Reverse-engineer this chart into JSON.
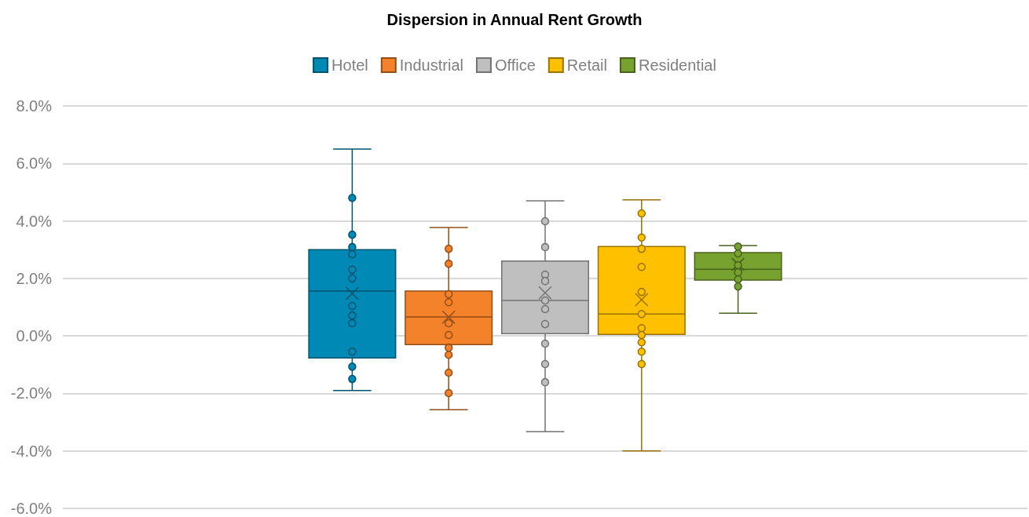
{
  "chart_data": {
    "type": "box",
    "title": "Dispersion in Annual Rent Growth",
    "categories": [
      null
    ],
    "ylim": [
      -6,
      8
    ],
    "yticks": [
      {
        "value": -6,
        "label": "-6.0%"
      },
      {
        "value": -4,
        "label": "-4.0%"
      },
      {
        "value": -2,
        "label": "-2.0%"
      },
      {
        "value": 0,
        "label": "0.0%"
      },
      {
        "value": 2,
        "label": "2.0%"
      },
      {
        "value": 4,
        "label": "4.0%"
      },
      {
        "value": 6,
        "label": "6.0%"
      },
      {
        "value": 8,
        "label": "8.0%"
      }
    ],
    "grid": "y",
    "legend": "top",
    "marker": "circle",
    "series": [
      {
        "name": "Hotel",
        "color": "#0089b5",
        "boxes": [
          {
            "low": -1.9,
            "q1": -0.77,
            "median": 1.56,
            "q3": 3.0,
            "high": 6.5,
            "mean": 1.48
          }
        ]
      },
      {
        "name": "Industrial",
        "color": "#f4822a",
        "boxes": [
          {
            "low": -2.57,
            "q1": -0.3,
            "median": 0.66,
            "q3": 1.56,
            "high": 3.77,
            "mean": 0.65
          }
        ]
      },
      {
        "name": "Office",
        "color": "#bfbfbf",
        "boxes": [
          {
            "low": -3.33,
            "q1": 0.08,
            "median": 1.23,
            "q3": 2.6,
            "high": 4.7,
            "mean": 1.5
          }
        ]
      },
      {
        "name": "Retail",
        "color": "#ffc000",
        "boxes": [
          {
            "low": -4.0,
            "q1": 0.05,
            "median": 0.76,
            "q3": 3.11,
            "high": 4.73,
            "mean": 1.26
          }
        ]
      },
      {
        "name": "Residential",
        "color": "#78a22f",
        "boxes": [
          {
            "low": 0.79,
            "q1": 1.94,
            "median": 2.32,
            "q3": 2.9,
            "high": 3.14,
            "mean": 2.49
          }
        ]
      },
      {
        "type": "scatter",
        "color": "#0089b5",
        "x": [
          null,
          null,
          null,
          null,
          null,
          null,
          null,
          null,
          null,
          null,
          null,
          null
        ],
        "values": [
          4.8,
          3.52,
          3.09,
          2.84,
          2.3,
          2.0,
          1.04,
          0.71,
          0.44,
          -0.55,
          -1.07,
          -1.5
        ]
      },
      {
        "type": "scatter",
        "color": "#f4822a",
        "x": [
          null,
          null,
          null,
          null,
          null,
          null,
          null,
          null,
          null,
          null
        ],
        "values": [
          3.03,
          2.51,
          1.45,
          1.17,
          0.44,
          0.03,
          -0.41,
          -0.66,
          -1.28,
          -1.99
        ]
      },
      {
        "type": "scatter",
        "color": "#bfbfbf",
        "x": [
          null,
          null,
          null,
          null,
          null,
          null,
          null,
          null,
          null,
          null
        ],
        "values": [
          3.99,
          3.09,
          2.13,
          1.91,
          1.23,
          0.93,
          0.41,
          -0.27,
          -0.98,
          -1.61
        ]
      },
      {
        "type": "scatter",
        "color": "#ffc000",
        "x": [
          null,
          null,
          null,
          null,
          null,
          null,
          null,
          null,
          null,
          null,
          null
        ],
        "values": [
          4.26,
          3.42,
          3.03,
          2.4,
          1.53,
          0.76,
          0.27,
          0.03,
          -0.22,
          -0.55,
          -0.98
        ]
      },
      {
        "type": "scatter",
        "color": "#78a22f",
        "x": [
          null,
          null,
          null,
          null,
          null,
          null
        ],
        "values": [
          3.11,
          2.87,
          2.46,
          2.21,
          1.97,
          1.72
        ]
      }
    ]
  }
}
